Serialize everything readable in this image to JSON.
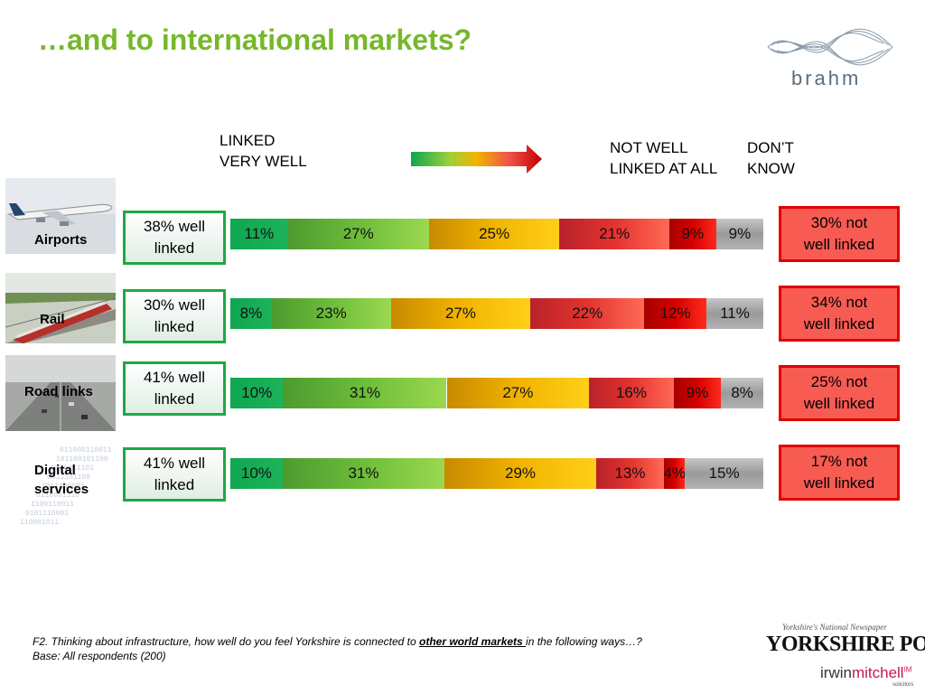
{
  "title": "…and to international markets?",
  "brand": {
    "name": "brahm"
  },
  "legend": {
    "left_line1": "LINKED",
    "left_line2": "VERY WELL",
    "mid_line1": "NOT WELL",
    "mid_line2": "LINKED AT ALL",
    "right_line1": "DON’T",
    "right_line2": "KNOW"
  },
  "colors": {
    "very_well": "#0fa650",
    "fairly_well": "#6dbd3a",
    "neutral": "#f1b400",
    "not_very_well": "#e3332f",
    "not_at_all": "#d40000",
    "dont_know": "#9a9a9a",
    "well_box_border": "#1fa845",
    "not_box_fill": "#f85b52"
  },
  "rows": [
    {
      "label_line1": "Airports",
      "label_line2": "",
      "photo_icon": "airplane-photo",
      "well_line1": "38% well",
      "well_line2": "linked",
      "not_line1": "30% not",
      "not_line2": "well linked"
    },
    {
      "label_line1": "Rail",
      "label_line2": "",
      "photo_icon": "train-photo",
      "well_line1": "30% well",
      "well_line2": "linked",
      "not_line1": "34% not",
      "not_line2": "well linked"
    },
    {
      "label_line1": "Road links",
      "label_line2": "",
      "photo_icon": "motorway-photo",
      "well_line1": "41% well",
      "well_line2": "linked",
      "not_line1": "25% not",
      "not_line2": "well linked"
    },
    {
      "label_line1": "Digital",
      "label_line2": "services",
      "photo_icon": "binary-data-photo",
      "well_line1": "41% well",
      "well_line2": "linked",
      "not_line1": "17% not",
      "not_line2": "well linked"
    }
  ],
  "chart_data": {
    "type": "bar",
    "orientation": "horizontal-stacked",
    "categories": [
      "Airports",
      "Rail",
      "Road links",
      "Digital services"
    ],
    "series": [
      {
        "values": [
          11,
          8,
          10,
          10
        ],
        "labels": [
          "11%",
          "8%",
          "10%",
          "10%"
        ]
      },
      {
        "values": [
          27,
          23,
          31,
          31
        ],
        "labels": [
          "27%",
          "23%",
          "31%",
          "31%"
        ]
      },
      {
        "values": [
          25,
          27,
          27,
          29
        ],
        "labels": [
          "25%",
          "27%",
          "27%",
          "29%"
        ]
      },
      {
        "values": [
          21,
          22,
          16,
          13
        ],
        "labels": [
          "21%",
          "22%",
          "16%",
          "13%"
        ]
      },
      {
        "values": [
          9,
          12,
          9,
          4
        ],
        "labels": [
          "9%",
          "12%",
          "9%",
          "4%"
        ]
      },
      {
        "values": [
          9,
          11,
          8,
          15
        ],
        "labels": [
          "9%",
          "11%",
          "8%",
          "15%"
        ]
      }
    ],
    "unit": "%",
    "legend": "top"
  },
  "footnote": {
    "line1_pre": "F2. Thinking about infrastructure, how well do you feel Yorkshire is connected to ",
    "line1_emph": "other world markets ",
    "line1_post": "in the following ways…?",
    "line2": "Base: All respondents (200)"
  },
  "sponsors": {
    "yp_tagline": "Yorkshire's National Newspaper",
    "yp_name": "YORKSHIRE POST",
    "im_irwin": "irwin",
    "im_mitchell": "mitchell",
    "im_mark": "IM",
    "im_sub": "solicitors"
  }
}
